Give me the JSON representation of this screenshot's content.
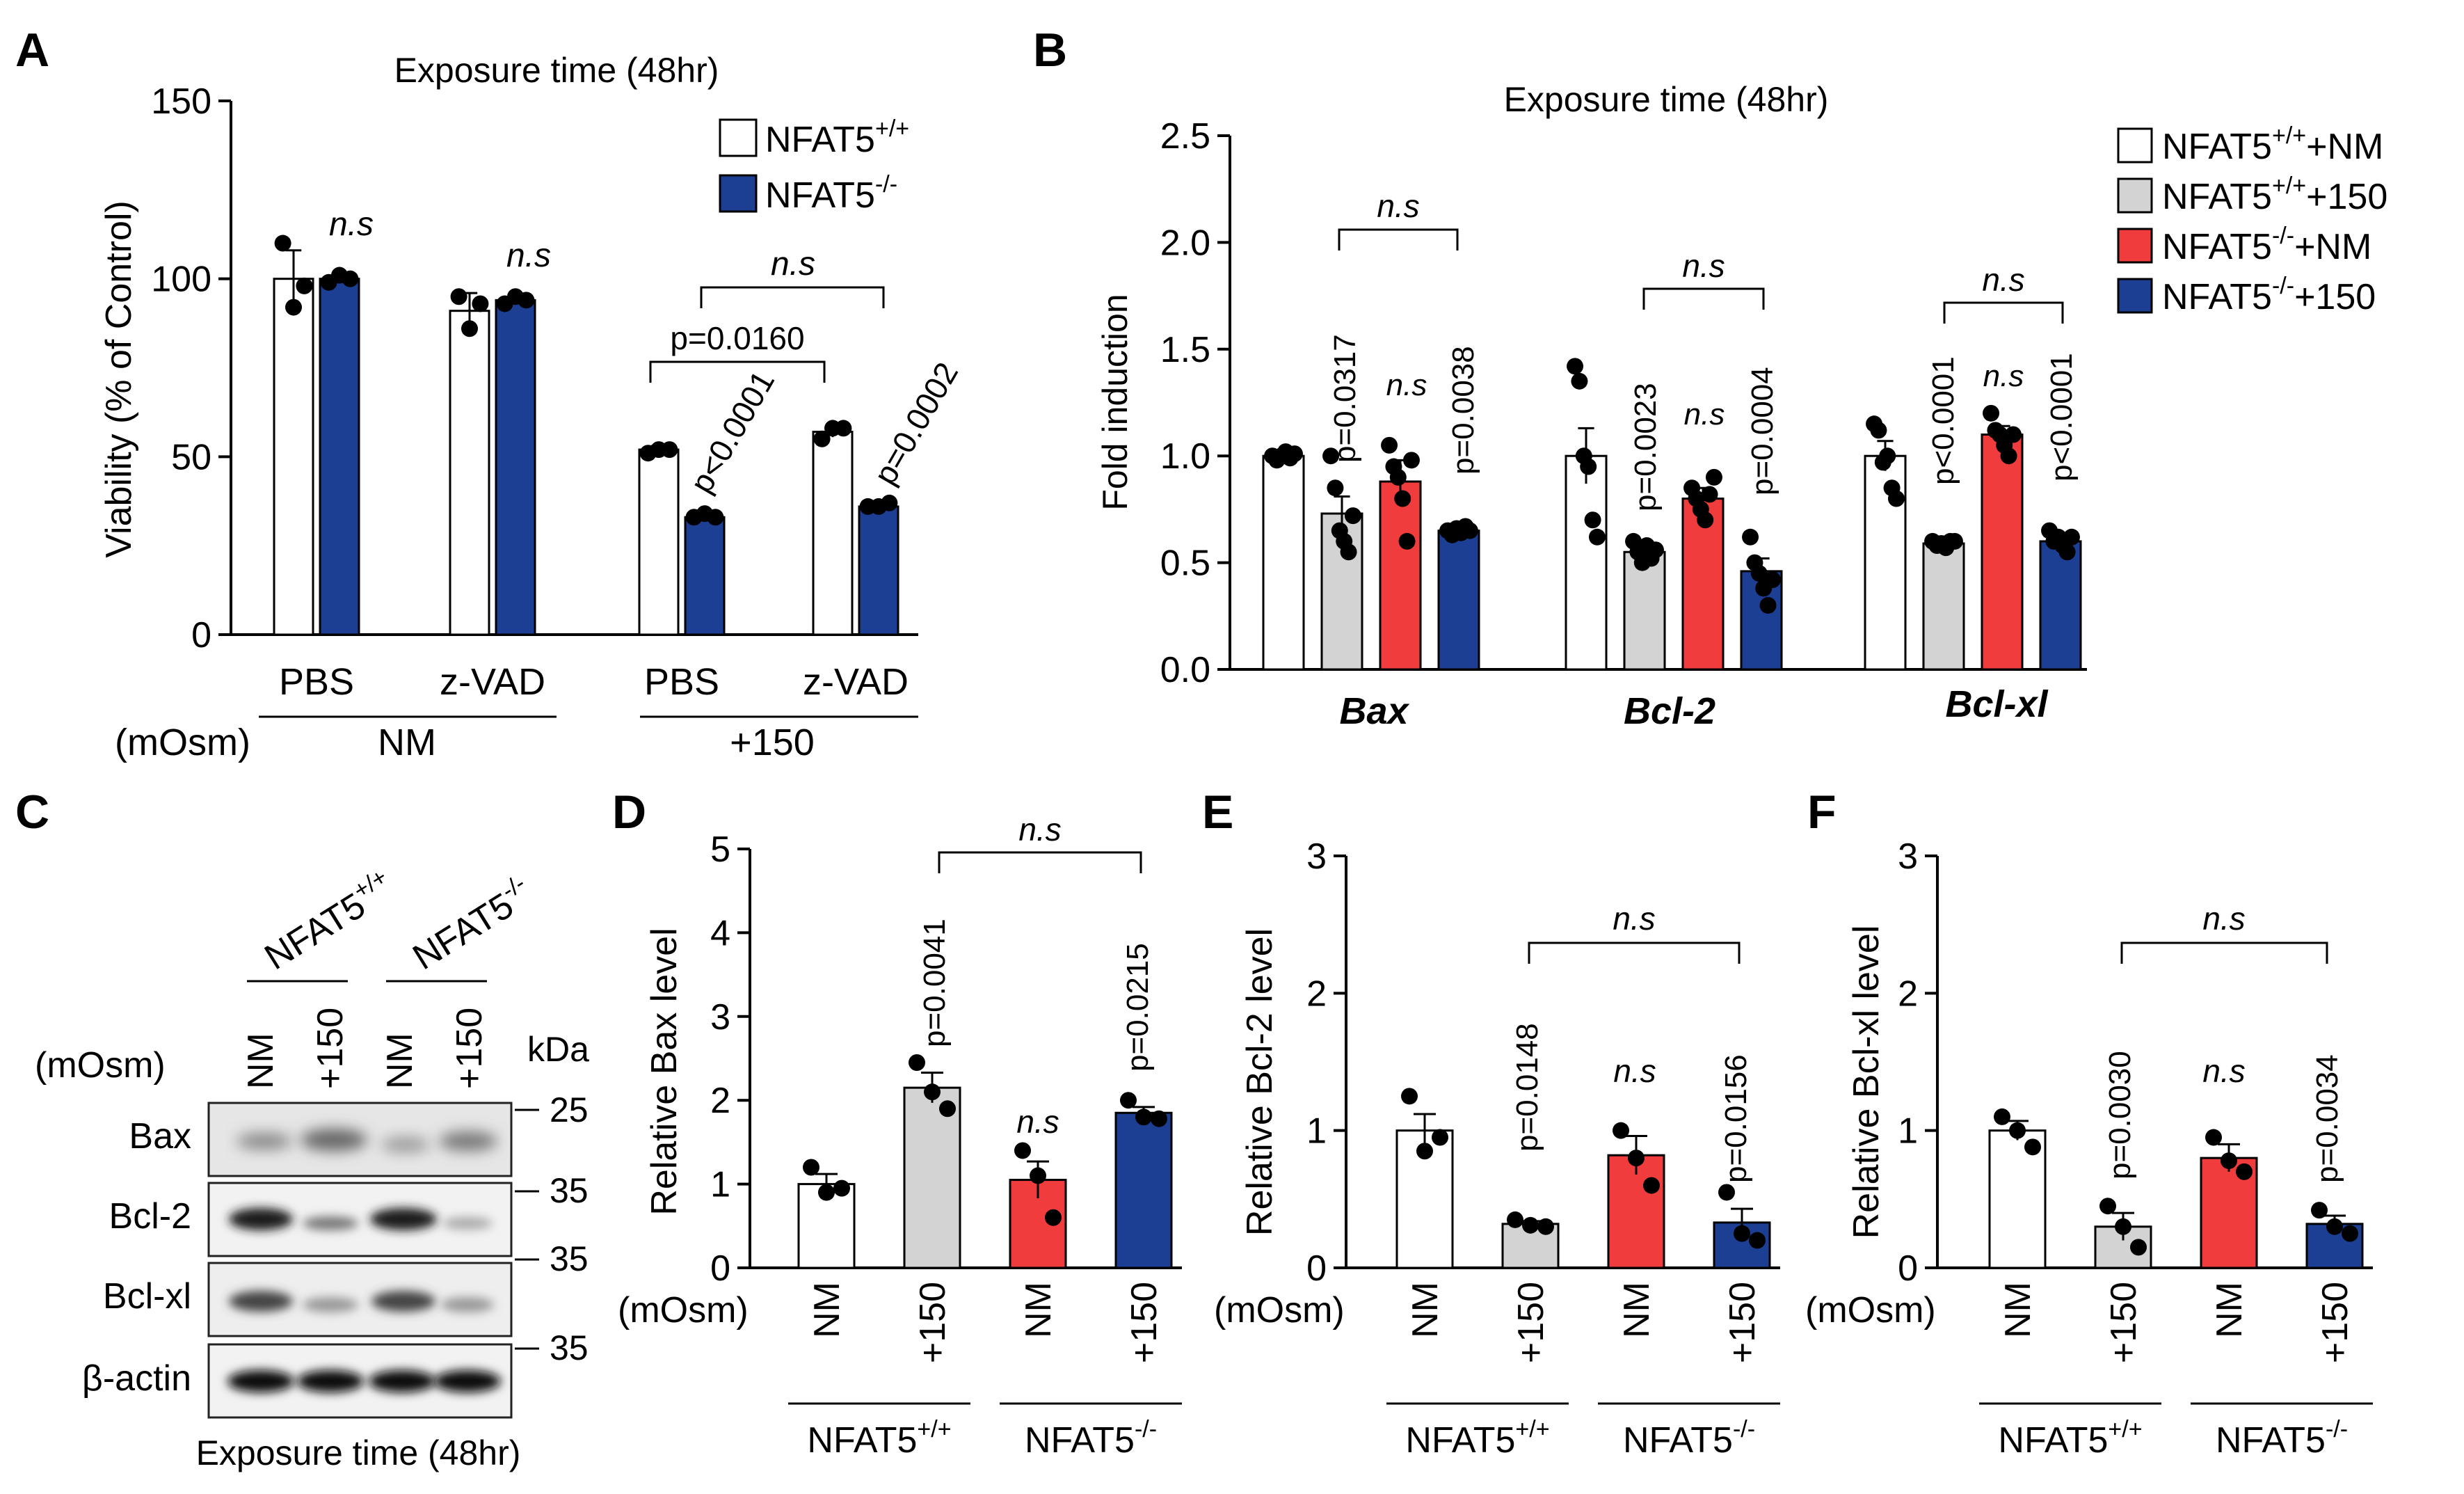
{
  "panelA": {
    "letter": "A",
    "title": "Exposure time (48hr)",
    "ylabel": "Viability (% of Control)",
    "legend": [
      {
        "label": "NFAT5",
        "sup": "+/+",
        "color": "#ffffff"
      },
      {
        "label": "NFAT5",
        "sup": "-/-",
        "color": "#1c3f94"
      }
    ],
    "groupLabels": [
      "PBS",
      "z-VAD",
      "PBS",
      "z-VAD"
    ],
    "osm": "(mOsm)",
    "nm": "NM",
    "p150": "+150",
    "annotations": {
      "ns1": "n.s",
      "ns2": "n.s",
      "ns3": "n.s",
      "p1": "p=0.0160",
      "p2": "p<0.0001",
      "p3": "p=0.0002"
    }
  },
  "panelB": {
    "letter": "B",
    "title": "Exposure time (48hr)",
    "ylabel": "Fold induction",
    "genes": [
      "Bax",
      "Bcl-2",
      "Bcl-xl"
    ],
    "legend": [
      {
        "label": "NFAT5",
        "sup": "+/+",
        "suffix": "+NM",
        "color": "#ffffff"
      },
      {
        "label": "NFAT5",
        "sup": "+/+",
        "suffix": "+150",
        "color": "#d3d3d3"
      },
      {
        "label": "NFAT5",
        "sup": "-/-",
        "suffix": "+NM",
        "color": "#f03c3c"
      },
      {
        "label": "NFAT5",
        "sup": "-/-",
        "suffix": "+150",
        "color": "#1c3f94"
      }
    ],
    "annotations": {
      "bax_p1": "p=0.0317",
      "bax_ns": "n.s",
      "bax_p2": "p=0.0038",
      "bax_br": "n.s",
      "bcl2_p1": "p=0.0023",
      "bcl2_ns": "n.s",
      "bcl2_p2": "p=0.0004",
      "bcl2_br": "n.s",
      "bclxl_p1": "p<0.0001",
      "bclxl_ns": "n.s",
      "bclxl_p2": "p<0.0001",
      "bclxl_br": "n.s"
    }
  },
  "panelC": {
    "letter": "C",
    "geno1": "NFAT5",
    "geno1sup": "+/+",
    "geno2": "NFAT5",
    "geno2sup": "-/-",
    "osm": "(mOsm)",
    "lanes": [
      "NM",
      "+150",
      "NM",
      "+150"
    ],
    "kda": "kDa",
    "rows": [
      "Bax",
      "Bcl-2",
      "Bcl-xl",
      "β-actin"
    ],
    "markers": [
      "25",
      "35",
      "35",
      "35"
    ],
    "footer": "Exposure time (48hr)"
  },
  "panelD": {
    "letter": "D",
    "ylabel": "Relative Bax level",
    "p1": "p=0.0041",
    "ns": "n.s",
    "p2": "p=0.0215",
    "br": "n.s"
  },
  "panelE": {
    "letter": "E",
    "ylabel": "Relative Bcl-2 level",
    "p1": "p=0.0148",
    "ns": "n.s",
    "p2": "p=0.0156",
    "br": "n.s"
  },
  "panelF": {
    "letter": "F",
    "ylabel": "Relative Bcl-xl level",
    "p1": "p=0.0030",
    "ns": "n.s",
    "p2": "p=0.0034",
    "br": "n.s"
  },
  "smallPanel": {
    "osm": "(mOsm)",
    "lanes": [
      "NM",
      "+150",
      "NM",
      "+150"
    ],
    "geno1": "NFAT5",
    "geno1sup": "+/+",
    "geno2": "NFAT5",
    "geno2sup": "-/-"
  },
  "chart_data": [
    {
      "id": "A",
      "type": "bar",
      "title": "Exposure time (48hr)",
      "ylabel": "Viability (% of Control)",
      "ylim": [
        0,
        150
      ],
      "yticks": [
        0,
        50,
        100,
        150
      ],
      "categories": [
        "NM PBS",
        "NM z-VAD",
        "+150 PBS",
        "+150 z-VAD"
      ],
      "series": [
        {
          "name": "NFAT5+/+",
          "color": "#ffffff",
          "values": [
            100,
            91,
            52,
            57
          ],
          "err": [
            8,
            5,
            1,
            1.5
          ],
          "points": [
            [
              110,
              92,
              98
            ],
            [
              95,
              86,
              93
            ],
            [
              51,
              52,
              52
            ],
            [
              55,
              58,
              58
            ]
          ]
        },
        {
          "name": "NFAT5-/-",
          "color": "#1c3f94",
          "values": [
            100,
            94,
            33,
            36
          ],
          "err": [
            1,
            1,
            0.8,
            0.8
          ],
          "points": [
            [
              99,
              101,
              100
            ],
            [
              93,
              95,
              94
            ],
            [
              33,
              34,
              33
            ],
            [
              36,
              36,
              37
            ]
          ]
        }
      ]
    },
    {
      "id": "B",
      "type": "bar",
      "title": "Exposure time (48hr)",
      "ylabel": "Fold induction",
      "ylim": [
        0,
        2.5
      ],
      "yticks": [
        0.0,
        0.5,
        1.0,
        1.5,
        2.0,
        2.5
      ],
      "categories": [
        "Bax",
        "Bcl-2",
        "Bcl-xl"
      ],
      "series": [
        {
          "name": "NFAT5+/+ +NM",
          "color": "#ffffff",
          "values": [
            1.0,
            1.0,
            1.0
          ],
          "err": [
            0.02,
            0.13,
            0.07
          ],
          "points": [
            [
              1.0,
              0.98,
              1.0,
              1.02,
              0.99,
              1.01
            ],
            [
              1.42,
              1.35,
              1.0,
              0.95,
              0.7,
              0.62
            ],
            [
              1.15,
              1.12,
              0.97,
              1.0,
              0.85,
              0.8
            ]
          ]
        },
        {
          "name": "NFAT5+/+ +150",
          "color": "#d3d3d3",
          "values": [
            0.73,
            0.55,
            0.59
          ],
          "err": [
            0.08,
            0.03,
            0.01
          ],
          "points": [
            [
              1.0,
              0.85,
              0.65,
              0.6,
              0.55,
              0.72
            ],
            [
              0.6,
              0.55,
              0.5,
              0.58,
              0.52,
              0.56
            ],
            [
              0.6,
              0.58,
              0.59,
              0.57,
              0.6,
              0.6
            ]
          ]
        },
        {
          "name": "NFAT5-/- +NM",
          "color": "#f03c3c",
          "values": [
            0.88,
            0.8,
            1.1
          ],
          "err": [
            0.1,
            0.05,
            0.04
          ],
          "points": [
            [
              1.05,
              0.95,
              0.9,
              0.8,
              0.6,
              0.98
            ],
            [
              0.85,
              0.8,
              0.75,
              0.7,
              0.82,
              0.9
            ],
            [
              1.2,
              1.12,
              1.1,
              1.05,
              1.0,
              1.1
            ]
          ]
        },
        {
          "name": "NFAT5-/- +150",
          "color": "#1c3f94",
          "values": [
            0.65,
            0.46,
            0.6
          ],
          "err": [
            0.02,
            0.06,
            0.03
          ],
          "points": [
            [
              0.65,
              0.63,
              0.66,
              0.64,
              0.67,
              0.65
            ],
            [
              0.62,
              0.5,
              0.45,
              0.38,
              0.3,
              0.42
            ],
            [
              0.65,
              0.6,
              0.62,
              0.58,
              0.55,
              0.62
            ]
          ]
        }
      ]
    },
    {
      "id": "D",
      "type": "bar",
      "ylabel": "Relative Bax level",
      "ylim": [
        0,
        5
      ],
      "yticks": [
        0,
        1,
        2,
        3,
        4,
        5
      ],
      "categories": [
        "NM",
        "+150",
        "NM",
        "+150"
      ],
      "colors": [
        "#ffffff",
        "#d3d3d3",
        "#f03c3c",
        "#1c3f94"
      ],
      "values": [
        1.0,
        2.15,
        1.05,
        1.85
      ],
      "err": [
        0.12,
        0.18,
        0.22,
        0.07
      ],
      "points": [
        [
          1.2,
          0.9,
          0.95
        ],
        [
          2.45,
          2.1,
          1.9
        ],
        [
          1.4,
          1.1,
          0.6
        ],
        [
          2.0,
          1.8,
          1.78
        ]
      ]
    },
    {
      "id": "E",
      "type": "bar",
      "ylabel": "Relative Bcl-2 level",
      "ylim": [
        0,
        3
      ],
      "yticks": [
        0,
        1,
        2,
        3
      ],
      "categories": [
        "NM",
        "+150",
        "NM",
        "+150"
      ],
      "colors": [
        "#ffffff",
        "#d3d3d3",
        "#f03c3c",
        "#1c3f94"
      ],
      "values": [
        1.0,
        0.32,
        0.82,
        0.33
      ],
      "err": [
        0.12,
        0.02,
        0.14,
        0.1
      ],
      "points": [
        [
          1.25,
          0.85,
          0.95
        ],
        [
          0.35,
          0.31,
          0.3
        ],
        [
          1.0,
          0.8,
          0.6
        ],
        [
          0.55,
          0.25,
          0.2
        ]
      ]
    },
    {
      "id": "F",
      "type": "bar",
      "ylabel": "Relative Bcl-xl level",
      "ylim": [
        0,
        3
      ],
      "yticks": [
        0,
        1,
        2,
        3
      ],
      "categories": [
        "NM",
        "+150",
        "NM",
        "+150"
      ],
      "colors": [
        "#ffffff",
        "#d3d3d3",
        "#f03c3c",
        "#1c3f94"
      ],
      "values": [
        1.0,
        0.3,
        0.8,
        0.32
      ],
      "err": [
        0.07,
        0.1,
        0.1,
        0.06
      ],
      "points": [
        [
          1.1,
          1.0,
          0.88
        ],
        [
          0.45,
          0.3,
          0.15
        ],
        [
          0.95,
          0.78,
          0.7
        ],
        [
          0.42,
          0.3,
          0.25
        ]
      ]
    }
  ]
}
